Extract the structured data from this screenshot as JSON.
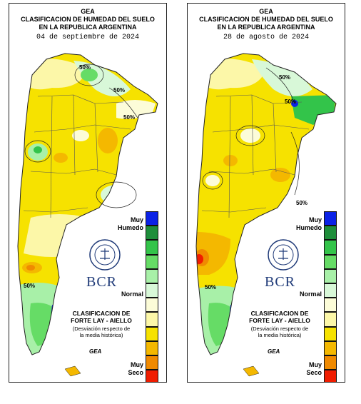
{
  "title_line1": "GEA",
  "title_line2": "CLASIFICACION DE HUMEDAD DEL SUELO",
  "title_line3": "EN LA REPUBLICA ARGENTINA",
  "panels": [
    {
      "date": "04 de septiembre de 2024",
      "contour_labels": [
        "50%",
        "50%",
        "50%",
        "50%"
      ]
    },
    {
      "date": "28 de agosto de 2024",
      "contour_labels": [
        "50%",
        "50%",
        "50%",
        "50%"
      ]
    }
  ],
  "legend": {
    "top_label_line1": "Muy",
    "top_label_line2": "Humedo",
    "middle_label": "Normal",
    "bottom_label_line1": "Muy",
    "bottom_label_line2": "Seco",
    "colors": [
      "#0b22e6",
      "#1e8e3b",
      "#33c44a",
      "#66dc66",
      "#a8f0a8",
      "#d8f8d8",
      "#fcfcd8",
      "#fcf7a8",
      "#f6e200",
      "#f4b800",
      "#f08a00",
      "#f01c00"
    ]
  },
  "logo_text": "BCR",
  "seal_text": "BOLSA DE COMERCIO DE ROSARIO",
  "classification_line1": "CLASIFICACION DE",
  "classification_line2": "FORTE LAY - AIELLO",
  "deviation_line1": "(Desviación respecto de",
  "deviation_line2": "la media histórica)",
  "watermark": "GEA"
}
